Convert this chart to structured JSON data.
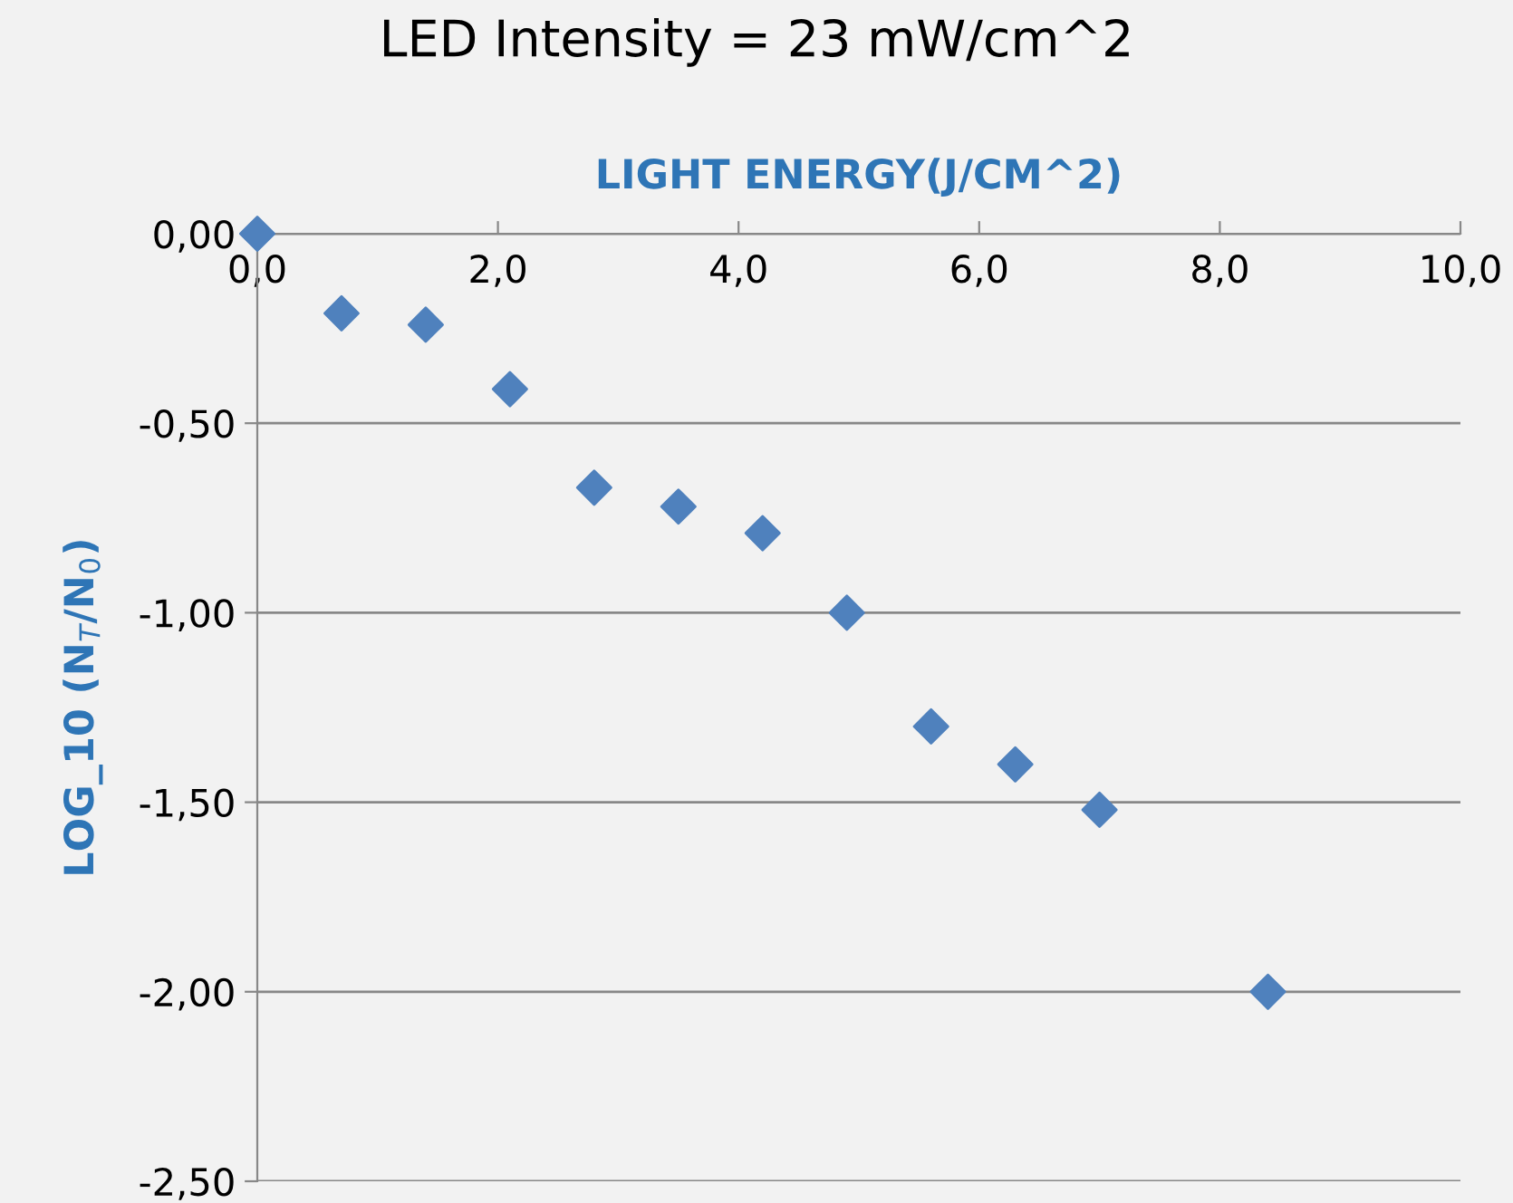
{
  "chart_data": {
    "type": "scatter",
    "title": "LED Intensity = 23 mW/cm^2",
    "xlabel": "LIGHT ENERGY(J/CM^2)",
    "ylabel": "LOG_10 (N$_{T}$/N$_{0}$)",
    "x": [
      0,
      0.7,
      1.4,
      2.1,
      2.8,
      3.5,
      4.2,
      4.9,
      5.6,
      6.3,
      7.0,
      8.4
    ],
    "series": [
      {
        "color": "#4f81bd",
        "values": [
          0,
          -0.21,
          -0.24,
          -0.41,
          -0.67,
          -0.72,
          -0.79,
          -1.0,
          -1.3,
          -1.4,
          -1.52,
          -2.0
        ]
      }
    ],
    "xlim": [
      0,
      10
    ],
    "xticks": [
      {
        "value": 0,
        "label": "0,0"
      },
      {
        "value": 2,
        "label": "2,0"
      },
      {
        "value": 4,
        "label": "4,0"
      },
      {
        "value": 6,
        "label": "6,0"
      },
      {
        "value": 8,
        "label": "8,0"
      },
      {
        "value": 10,
        "label": "10,0"
      }
    ],
    "ylim": [
      -2.5,
      0
    ],
    "yticks": [
      {
        "value": 0,
        "label": "0,00"
      },
      {
        "value": -0.5,
        "label": "-0,50"
      },
      {
        "value": -1,
        "label": "-1,00"
      },
      {
        "value": -1.5,
        "label": "-1,50"
      },
      {
        "value": -2,
        "label": "-2,00"
      },
      {
        "value": -2.5,
        "label": "-2,50"
      }
    ],
    "grid": "y",
    "marker": "diamond"
  }
}
